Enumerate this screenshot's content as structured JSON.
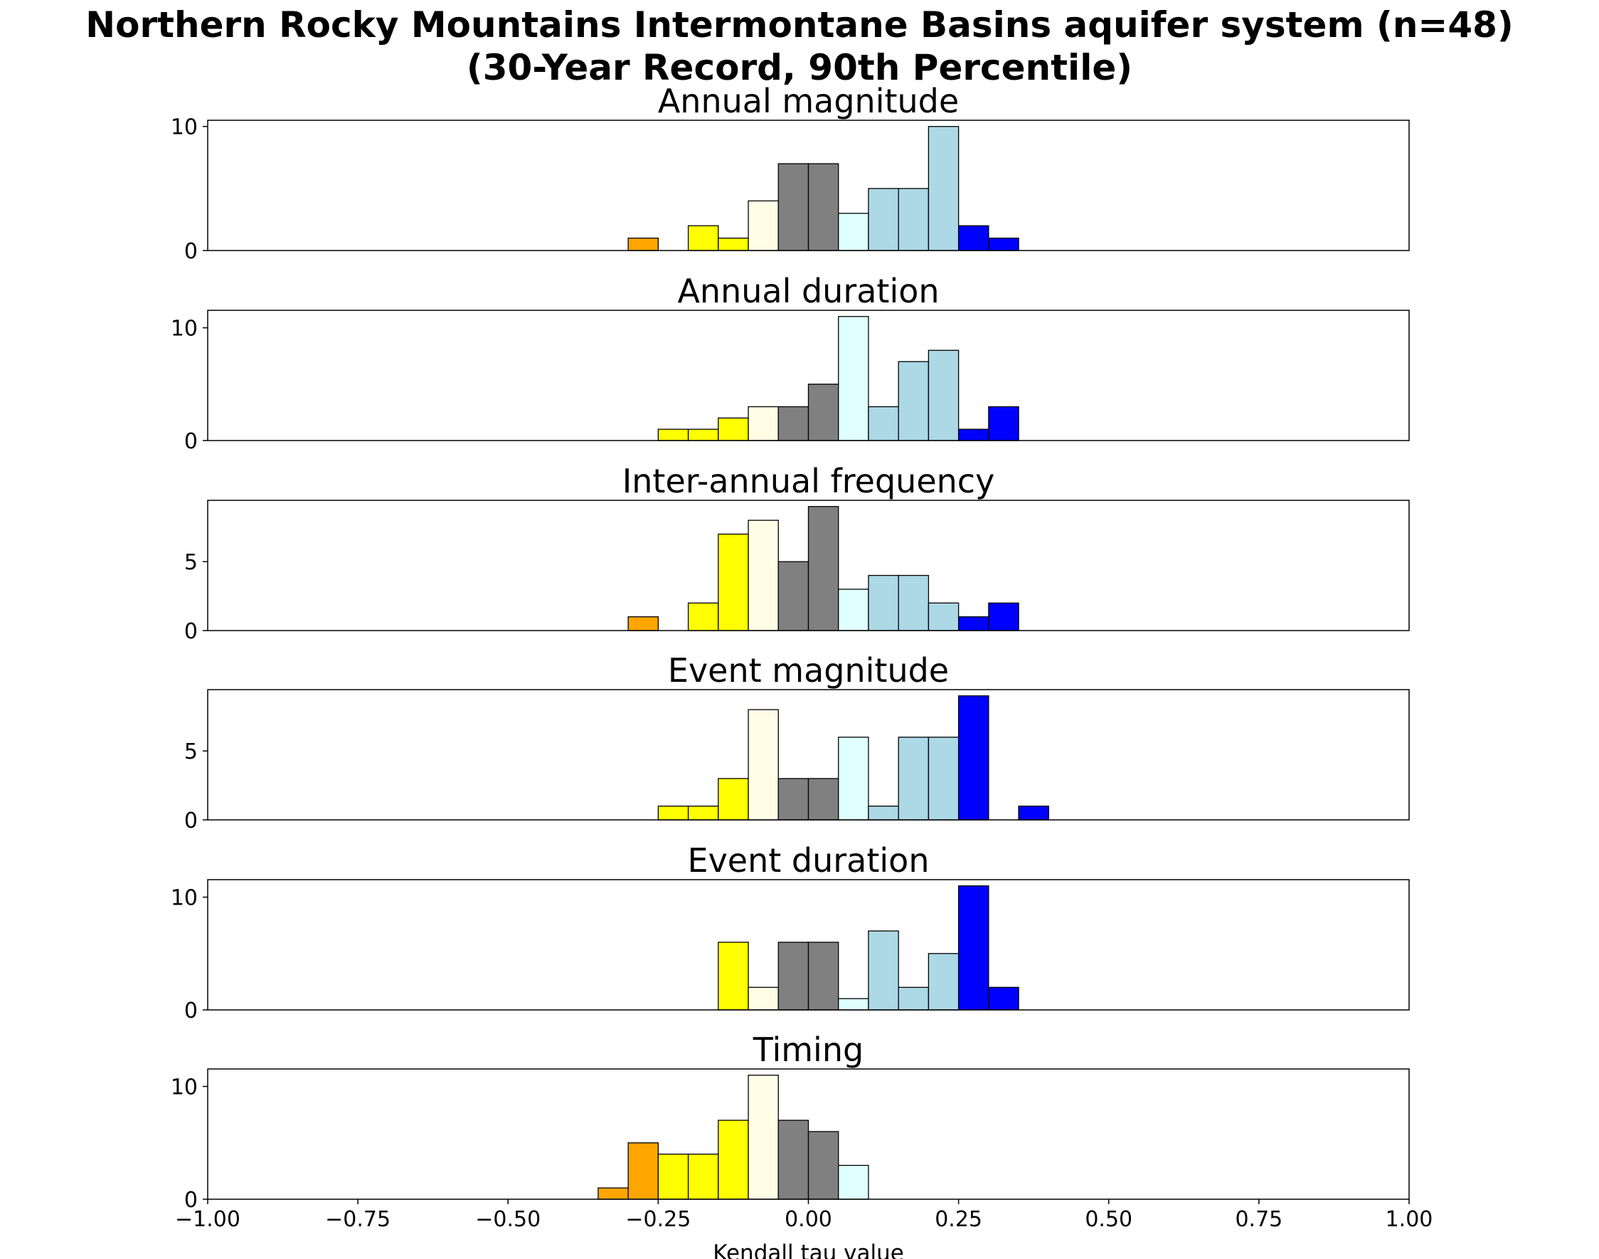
{
  "figure": {
    "title_line1": "Northern Rocky Mountains Intermontane Basins aquifer system (n=48)",
    "title_line2": "(30-Year Record, 90th Percentile)"
  },
  "colors": {
    "-0.35": "#ffa500",
    "-0.30": "#ffa500",
    "-0.25": "#ffff00",
    "-0.20": "#ffff00",
    "-0.15": "#ffff00",
    "-0.10": "#fffde6",
    "-0.05": "#808080",
    "0.00": "#808080",
    "0.05": "#e0ffff",
    "0.10": "#add8e6",
    "0.15": "#add8e6",
    "0.20": "#add8e6",
    "0.25": "#0000ff",
    "0.30": "#0000ff",
    "0.35": "#0000ff"
  },
  "chart_data": [
    {
      "type": "bar",
      "title": "Annual magnitude",
      "bin_width": 0.05,
      "bin_edges": [
        -0.3,
        -0.25,
        -0.2,
        -0.15,
        -0.1,
        -0.05,
        0.0,
        0.05,
        0.1,
        0.15,
        0.2,
        0.25,
        0.3
      ],
      "values": [
        1,
        0,
        2,
        1,
        4,
        7,
        7,
        3,
        5,
        5,
        10,
        2,
        1
      ],
      "xlim": [
        -1,
        1
      ],
      "ylim": [
        0,
        10.5
      ],
      "yticks": [
        0,
        10
      ],
      "xticks": [],
      "xlabel": ""
    },
    {
      "type": "bar",
      "title": "Annual duration",
      "bin_width": 0.05,
      "bin_edges": [
        -0.25,
        -0.2,
        -0.15,
        -0.1,
        -0.05,
        0.0,
        0.05,
        0.1,
        0.15,
        0.2,
        0.25,
        0.3
      ],
      "values": [
        1,
        1,
        2,
        3,
        3,
        5,
        11,
        3,
        7,
        8,
        1,
        3
      ],
      "xlim": [
        -1,
        1
      ],
      "ylim": [
        0,
        11.55
      ],
      "yticks": [
        0,
        10
      ],
      "xticks": [],
      "xlabel": ""
    },
    {
      "type": "bar",
      "title": "Inter-annual frequency",
      "bin_width": 0.05,
      "bin_edges": [
        -0.3,
        -0.25,
        -0.2,
        -0.15,
        -0.1,
        -0.05,
        0.0,
        0.05,
        0.1,
        0.15,
        0.2,
        0.25,
        0.3
      ],
      "values": [
        1,
        0,
        2,
        7,
        8,
        5,
        9,
        3,
        4,
        4,
        2,
        1,
        2
      ],
      "xlim": [
        -1,
        1
      ],
      "ylim": [
        0,
        9.45
      ],
      "yticks": [
        0,
        5
      ],
      "xticks": [],
      "xlabel": ""
    },
    {
      "type": "bar",
      "title": "Event magnitude",
      "bin_width": 0.05,
      "bin_edges": [
        -0.25,
        -0.2,
        -0.15,
        -0.1,
        -0.05,
        0.0,
        0.05,
        0.1,
        0.15,
        0.2,
        0.25,
        0.3,
        0.35
      ],
      "values": [
        1,
        1,
        3,
        8,
        3,
        3,
        6,
        1,
        6,
        6,
        9,
        0,
        1
      ],
      "xlim": [
        -1,
        1
      ],
      "ylim": [
        0,
        9.45
      ],
      "yticks": [
        0,
        5
      ],
      "xticks": [],
      "xlabel": ""
    },
    {
      "type": "bar",
      "title": "Event duration",
      "bin_width": 0.05,
      "bin_edges": [
        -0.15,
        -0.1,
        -0.05,
        0.0,
        0.05,
        0.1,
        0.15,
        0.2,
        0.25,
        0.3
      ],
      "values": [
        6,
        2,
        6,
        6,
        1,
        7,
        2,
        5,
        11,
        2
      ],
      "xlim": [
        -1,
        1
      ],
      "ylim": [
        0,
        11.55
      ],
      "yticks": [
        0,
        10
      ],
      "xticks": [],
      "xlabel": ""
    },
    {
      "type": "bar",
      "title": "Timing",
      "bin_width": 0.05,
      "bin_edges": [
        -0.35,
        -0.3,
        -0.25,
        -0.2,
        -0.15,
        -0.1,
        -0.05,
        0.0,
        0.05
      ],
      "values": [
        1,
        5,
        4,
        4,
        7,
        11,
        7,
        6,
        3
      ],
      "xlim": [
        -1,
        1
      ],
      "ylim": [
        0,
        11.55
      ],
      "yticks": [
        0,
        10
      ],
      "xticks": [
        "−1.00",
        "−0.75",
        "−0.50",
        "−0.25",
        "0.00",
        "0.25",
        "0.50",
        "0.75",
        "1.00"
      ],
      "xlabel": "Kendall tau value"
    }
  ]
}
